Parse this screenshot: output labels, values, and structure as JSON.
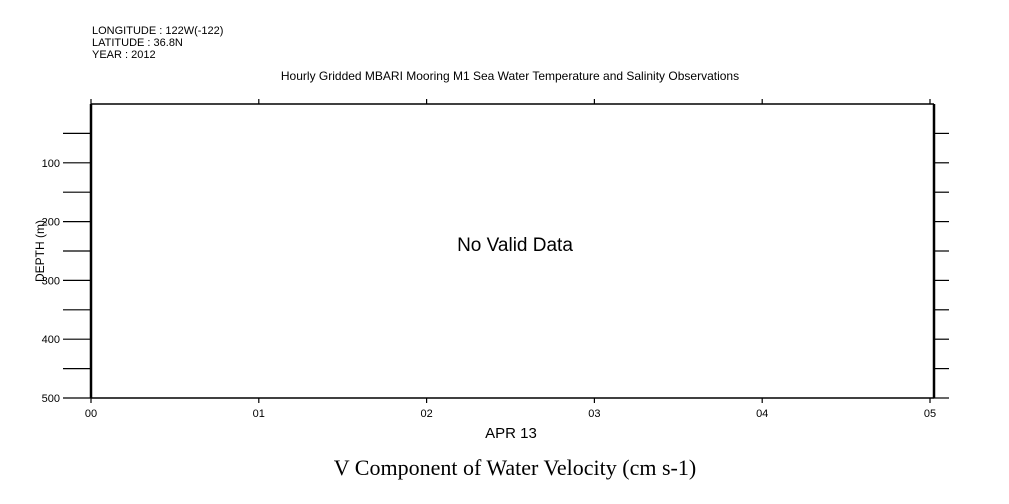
{
  "header": {
    "longitude": "LONGITUDE : 122W(-122)",
    "latitude": "LATITUDE : 36.8N",
    "year": "YEAR : 2012"
  },
  "chart_data": {
    "type": "heatmap",
    "title": "Hourly Gridded MBARI Mooring M1 Sea Water Temperature and Salinity Observations",
    "variable_title": "V Component of Water Velocity (cm s-1)",
    "message": "No Valid Data",
    "xlabel": "APR 13",
    "ylabel": "DEPTH (m)",
    "xlim": [
      0,
      5.02
    ],
    "ylim": [
      500,
      0
    ],
    "x_ticks": [
      0,
      1,
      2,
      3,
      4,
      5
    ],
    "x_tick_labels": [
      "00",
      "01",
      "02",
      "03",
      "04",
      "05"
    ],
    "y_ticks": [
      100,
      200,
      300,
      400,
      500
    ],
    "y_tick_labels": [
      "100",
      "200",
      "300",
      "400",
      "500"
    ],
    "y_minor_step": 50,
    "grid": false,
    "values": []
  }
}
